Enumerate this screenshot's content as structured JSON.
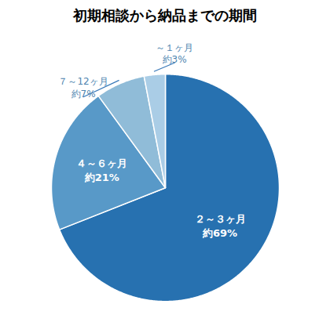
{
  "chart_data": {
    "type": "pie",
    "title": "初期相談から納品までの期間",
    "categories": [
      "２～３ヶ月",
      "４～６ヶ月",
      "７～12ヶ月",
      "～１ヶ月"
    ],
    "values": [
      69,
      21,
      7,
      3
    ],
    "value_labels": [
      "約69%",
      "約21%",
      "約7%",
      "約3%"
    ],
    "colors": [
      "#2771b0",
      "#5899c8",
      "#90bcd8",
      "#aacde6"
    ],
    "data_labels": true
  }
}
